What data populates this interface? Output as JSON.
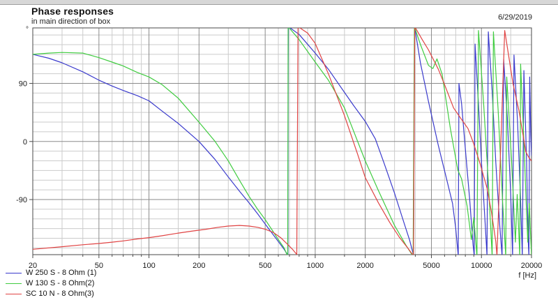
{
  "header": {
    "title": "Phase responses",
    "subtitle": "in main direction of box",
    "date": "6/29/2019"
  },
  "axes_style": {
    "grid_minor_color": "#cbcbcb",
    "grid_major_color": "#8b8b8b",
    "border_color": "#4a4a4a",
    "text_color": "#1a1a1a"
  },
  "chart_data": {
    "type": "line",
    "title": "Phase responses",
    "subtitle": "in main direction of box",
    "x_scale": "log",
    "x_range": [
      20,
      20000
    ],
    "y_range": [
      -180,
      180
    ],
    "x_label": "f [Hz]",
    "y_unit": "°",
    "x_ticks": [
      20,
      50,
      100,
      200,
      500,
      1000,
      2000,
      5000,
      10000,
      20000
    ],
    "x_gridlines": [
      20,
      30,
      40,
      50,
      60,
      70,
      80,
      90,
      100,
      150,
      200,
      300,
      400,
      500,
      600,
      700,
      800,
      900,
      1000,
      1500,
      2000,
      3000,
      4000,
      5000,
      6000,
      7000,
      8000,
      9000,
      10000,
      15000,
      20000
    ],
    "y_ticks": [
      90,
      0,
      -90
    ],
    "y_minor_step": 15,
    "grid": true,
    "legend_position": "bottom-left",
    "series": [
      {
        "name": "W 250 S - 8 Ohm (1)",
        "color": "#3a3acc",
        "points": [
          [
            20,
            135
          ],
          [
            25,
            129
          ],
          [
            30,
            122
          ],
          [
            40,
            108
          ],
          [
            50,
            95
          ],
          [
            60,
            86
          ],
          [
            70,
            79
          ],
          [
            85,
            71
          ],
          [
            100,
            63
          ],
          [
            120,
            47
          ],
          [
            150,
            28
          ],
          [
            200,
            0
          ],
          [
            250,
            -28
          ],
          [
            300,
            -55
          ],
          [
            350,
            -77
          ],
          [
            400,
            -95
          ],
          [
            450,
            -112
          ],
          [
            500,
            -128
          ],
          [
            550,
            -142
          ],
          [
            600,
            -155
          ],
          [
            650,
            -167
          ],
          [
            685,
            -176
          ],
          [
            688,
            120
          ],
          [
            690,
            178
          ],
          [
            800,
            166
          ],
          [
            1000,
            137
          ],
          [
            1200,
            112
          ],
          [
            1500,
            76
          ],
          [
            1700,
            56
          ],
          [
            2000,
            31
          ],
          [
            2300,
            4
          ],
          [
            2600,
            -34
          ],
          [
            3000,
            -80
          ],
          [
            3400,
            -124
          ],
          [
            3700,
            -153
          ],
          [
            3900,
            -176
          ],
          [
            3960,
            178
          ],
          [
            4300,
            121
          ],
          [
            4800,
            62
          ],
          [
            5500,
            -6
          ],
          [
            6100,
            -53
          ],
          [
            6700,
            -96
          ],
          [
            7000,
            -134
          ],
          [
            7250,
            -177
          ],
          [
            7320,
            90
          ],
          [
            7600,
            58
          ],
          [
            8000,
            -12
          ],
          [
            8500,
            -90
          ],
          [
            8900,
            -160
          ],
          [
            9050,
            -177
          ],
          [
            9150,
            151
          ],
          [
            9600,
            58
          ],
          [
            10000,
            -32
          ],
          [
            10500,
            -122
          ],
          [
            10800,
            -177
          ],
          [
            11000,
            170
          ],
          [
            11600,
            78
          ],
          [
            12200,
            -32
          ],
          [
            12900,
            -132
          ],
          [
            13300,
            -177
          ],
          [
            13600,
            127
          ],
          [
            14300,
            38
          ],
          [
            15000,
            -82
          ],
          [
            15400,
            -177
          ],
          [
            15700,
            134
          ],
          [
            16500,
            28
          ],
          [
            17200,
            -92
          ],
          [
            17600,
            -177
          ],
          [
            18000,
            110
          ],
          [
            18700,
            -32
          ],
          [
            19100,
            -152
          ],
          [
            19300,
            -177
          ],
          [
            19500,
            100
          ],
          [
            19800,
            10
          ],
          [
            20000,
            -22
          ]
        ]
      },
      {
        "name": "W 130 S - 8 Ohm(2)",
        "color": "#40cc40",
        "points": [
          [
            20,
            135
          ],
          [
            25,
            137
          ],
          [
            30,
            138
          ],
          [
            40,
            137
          ],
          [
            50,
            130
          ],
          [
            60,
            123
          ],
          [
            70,
            117
          ],
          [
            85,
            107
          ],
          [
            100,
            100
          ],
          [
            120,
            88
          ],
          [
            150,
            67
          ],
          [
            200,
            30
          ],
          [
            250,
            0
          ],
          [
            300,
            -30
          ],
          [
            350,
            -60
          ],
          [
            400,
            -85
          ],
          [
            450,
            -105
          ],
          [
            500,
            -121
          ],
          [
            550,
            -137
          ],
          [
            600,
            -152
          ],
          [
            650,
            -165
          ],
          [
            683,
            -178
          ],
          [
            687,
            178
          ],
          [
            800,
            158
          ],
          [
            1000,
            123
          ],
          [
            1200,
            95
          ],
          [
            1500,
            52
          ],
          [
            2000,
            -30
          ],
          [
            2400,
            -76
          ],
          [
            3000,
            -130
          ],
          [
            3500,
            -160
          ],
          [
            3880,
            -178
          ],
          [
            3950,
            178
          ],
          [
            4300,
            150
          ],
          [
            4800,
            118
          ],
          [
            5100,
            113
          ],
          [
            5400,
            128
          ],
          [
            5800,
            104
          ],
          [
            6500,
            20
          ],
          [
            7200,
            -44
          ],
          [
            7600,
            -58
          ],
          [
            8200,
            -100
          ],
          [
            8700,
            -152
          ],
          [
            9000,
            -118
          ],
          [
            9400,
            -178
          ],
          [
            9600,
            172
          ],
          [
            10300,
            60
          ],
          [
            11000,
            -62
          ],
          [
            11600,
            -178
          ],
          [
            11800,
            170
          ],
          [
            12600,
            48
          ],
          [
            13400,
            -92
          ],
          [
            14000,
            -178
          ],
          [
            14200,
            100
          ],
          [
            15200,
            -32
          ],
          [
            16000,
            -156
          ],
          [
            16400,
            -82
          ],
          [
            17000,
            -178
          ],
          [
            17200,
            120
          ],
          [
            18000,
            0
          ],
          [
            18700,
            -112
          ],
          [
            19000,
            -156
          ],
          [
            19400,
            -96
          ],
          [
            20000,
            -178
          ]
        ]
      },
      {
        "name": "SC 10 N - 8 Ohm(3)",
        "color": "#e04343",
        "points": [
          [
            20,
            -167
          ],
          [
            30,
            -163
          ],
          [
            40,
            -160
          ],
          [
            50,
            -158
          ],
          [
            60,
            -156
          ],
          [
            70,
            -154
          ],
          [
            85,
            -151
          ],
          [
            100,
            -149
          ],
          [
            120,
            -146
          ],
          [
            150,
            -142
          ],
          [
            180,
            -139
          ],
          [
            220,
            -136
          ],
          [
            260,
            -133
          ],
          [
            300,
            -131
          ],
          [
            350,
            -130
          ],
          [
            400,
            -131
          ],
          [
            450,
            -133
          ],
          [
            500,
            -136
          ],
          [
            560,
            -141
          ],
          [
            620,
            -149
          ],
          [
            680,
            -159
          ],
          [
            730,
            -167
          ],
          [
            775,
            -175
          ],
          [
            788,
            178
          ],
          [
            900,
            168
          ],
          [
            1000,
            152
          ],
          [
            1200,
            105
          ],
          [
            1500,
            40
          ],
          [
            1800,
            -20
          ],
          [
            2000,
            -56
          ],
          [
            2400,
            -95
          ],
          [
            2800,
            -125
          ],
          [
            3200,
            -148
          ],
          [
            3600,
            -165
          ],
          [
            3900,
            -177
          ],
          [
            3970,
            178
          ],
          [
            4400,
            158
          ],
          [
            4800,
            142
          ],
          [
            5500,
            112
          ],
          [
            6000,
            88
          ],
          [
            6800,
            52
          ],
          [
            7500,
            36
          ],
          [
            8300,
            20
          ],
          [
            9000,
            -4
          ],
          [
            9800,
            -34
          ],
          [
            10800,
            -72
          ],
          [
            11500,
            -110
          ],
          [
            12200,
            -155
          ],
          [
            12400,
            -177
          ],
          [
            13800,
            172
          ],
          [
            15500,
            89
          ],
          [
            16800,
            48
          ],
          [
            18500,
            -16
          ],
          [
            19300,
            -25
          ],
          [
            20000,
            -30
          ]
        ]
      }
    ]
  }
}
